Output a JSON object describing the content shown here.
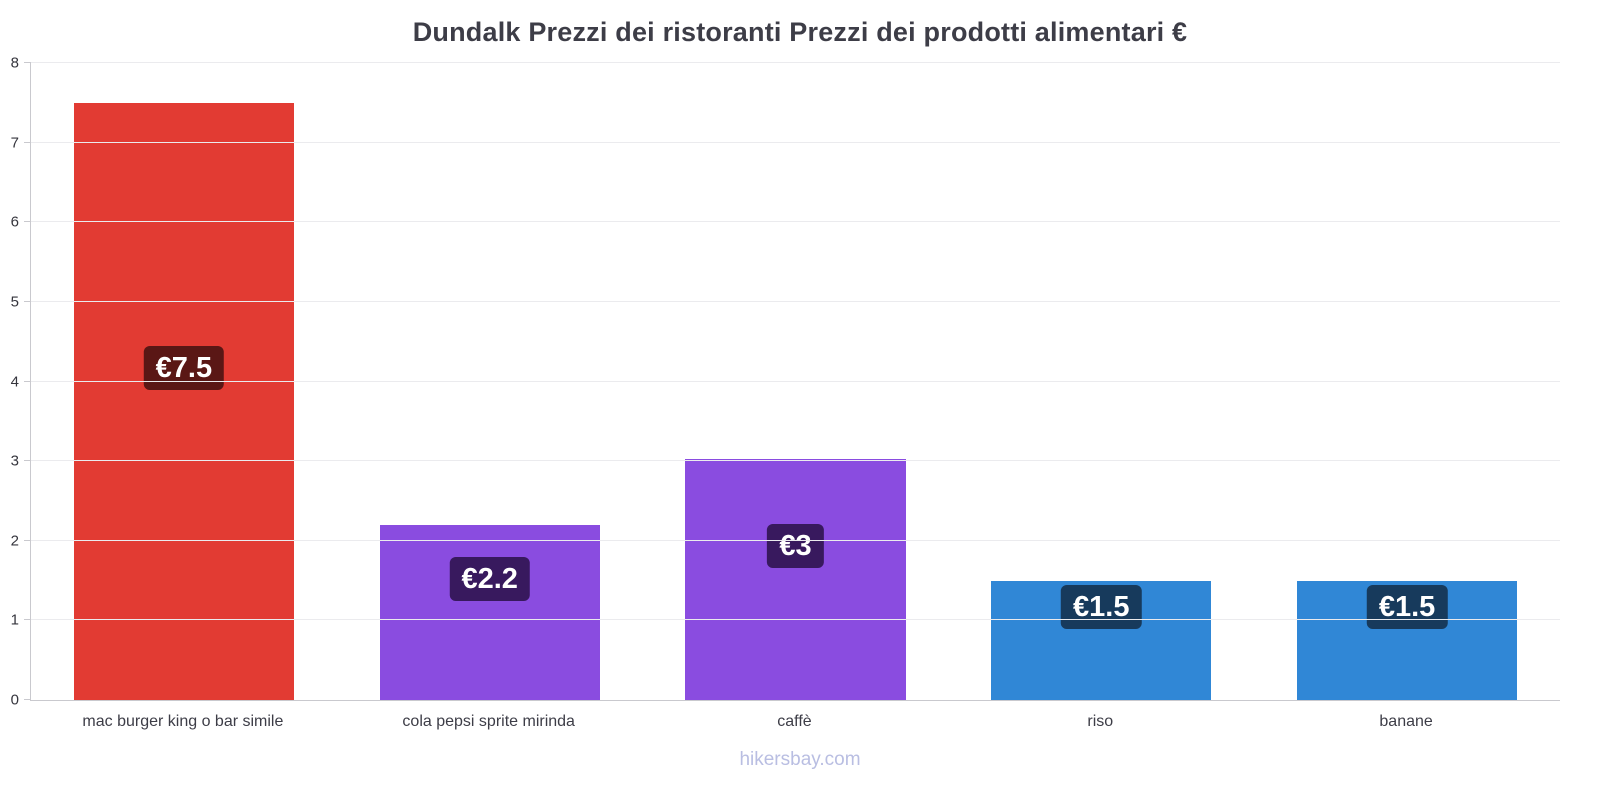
{
  "footer": {
    "text": "hikersbay.com"
  },
  "chart_data": {
    "type": "bar",
    "title": "Dundalk Prezzi dei ristoranti Prezzi dei prodotti alimentari €",
    "categories": [
      "mac burger king o bar simile",
      "cola pepsi sprite mirinda",
      "caffè",
      "riso",
      "banane"
    ],
    "values": [
      7.5,
      2.2,
      3.03,
      1.5,
      1.5
    ],
    "value_labels": [
      "€7.5",
      "€2.2",
      "€3",
      "€1.5",
      "€1.5"
    ],
    "bar_colors": [
      "#e23b33",
      "#8a4ce0",
      "#8a4ce0",
      "#3087d6",
      "#3087d6"
    ],
    "label_bg_colors": [
      "#5a1715",
      "#38195e",
      "#38195e",
      "#173a5c",
      "#173a5c"
    ],
    "xlabel": "",
    "ylabel": "",
    "ylim": [
      0,
      8
    ],
    "yticks": [
      0,
      1,
      2,
      3,
      4,
      5,
      6,
      7,
      8
    ],
    "grid": true,
    "legend": false
  }
}
